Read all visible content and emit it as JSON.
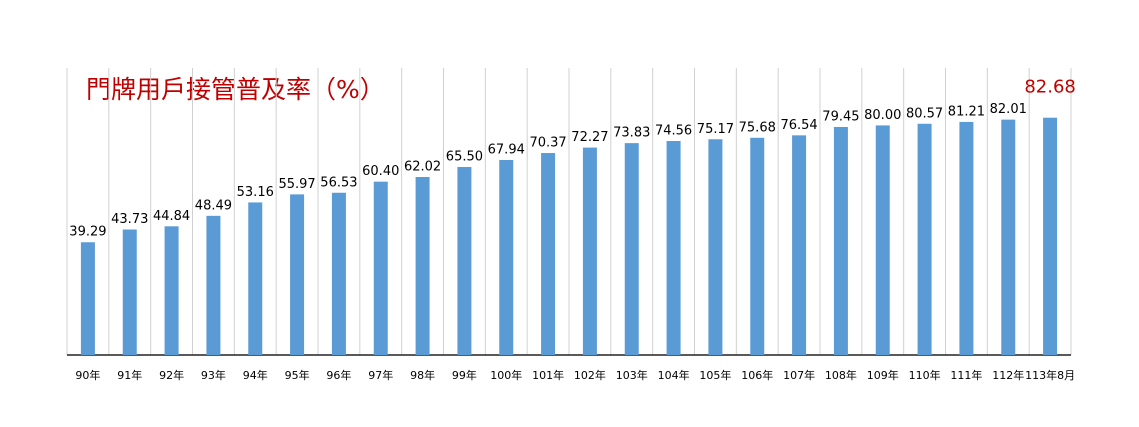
{
  "chart_data": {
    "type": "bar",
    "title": "門牌用戶接管普及率（%）",
    "title_color": "#c00000",
    "categories": [
      "90年",
      "91年",
      "92年",
      "93年",
      "94年",
      "95年",
      "96年",
      "97年",
      "98年",
      "99年",
      "100年",
      "101年",
      "102年",
      "103年",
      "104年",
      "105年",
      "106年",
      "107年",
      "108年",
      "109年",
      "110年",
      "111年",
      "112年",
      "113年8月"
    ],
    "values": [
      39.29,
      43.73,
      44.84,
      48.49,
      53.16,
      55.97,
      56.53,
      60.4,
      62.02,
      65.5,
      67.94,
      70.37,
      72.27,
      73.83,
      74.56,
      75.17,
      75.68,
      76.54,
      79.45,
      80.0,
      80.57,
      81.21,
      82.01,
      82.68
    ],
    "value_labels": [
      "39.29",
      "43.73",
      "44.84",
      "48.49",
      "53.16",
      "55.97",
      "56.53",
      "60.40",
      "62.02",
      "65.50",
      "67.94",
      "70.37",
      "72.27",
      "73.83",
      "74.56",
      "75.17",
      "75.68",
      "76.54",
      "79.45",
      "80.00",
      "80.57",
      "81.21",
      "82.01",
      "82.68"
    ],
    "color": "#5b9bd5",
    "highlight_color": "#c00000",
    "ylim": [
      0,
      100
    ],
    "grid": true
  }
}
